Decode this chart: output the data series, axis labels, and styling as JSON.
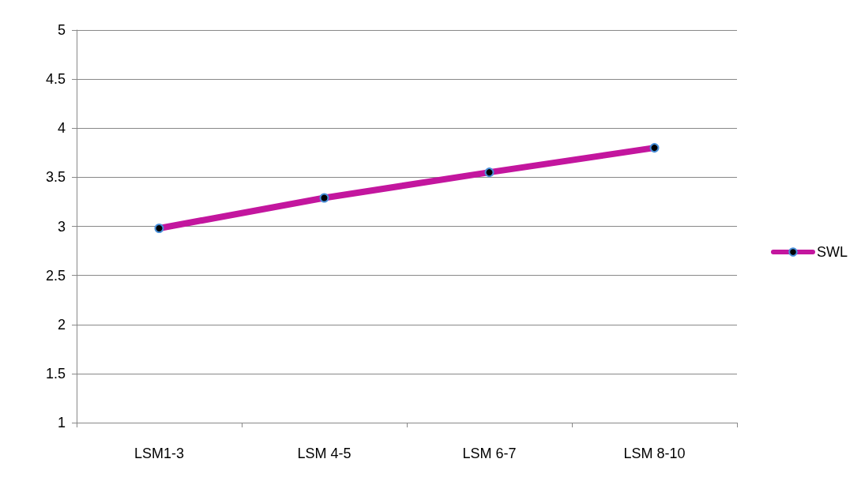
{
  "chart_data": {
    "type": "line",
    "categories": [
      "LSM1-3",
      "LSM 4-5",
      "LSM 6-7",
      "LSM 8-10"
    ],
    "series": [
      {
        "name": "SWL",
        "color": "#c3169e",
        "values": [
          2.98,
          3.29,
          3.55,
          3.8
        ]
      }
    ],
    "ylim": [
      1,
      5
    ],
    "yticks": [
      1,
      1.5,
      2,
      2.5,
      3,
      3.5,
      4,
      4.5,
      5
    ],
    "grid": "y",
    "legend": "right",
    "marker": "circle",
    "line_style": "solid"
  }
}
